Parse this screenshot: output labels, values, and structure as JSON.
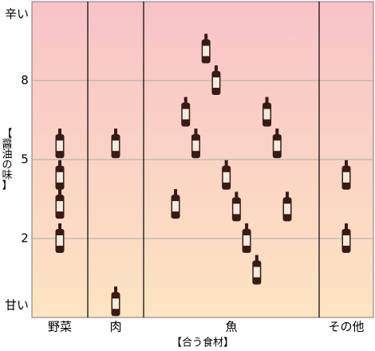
{
  "chart_data": {
    "type": "scatter",
    "y_label": "【醤油の味】",
    "x_label": "【合う食材】",
    "y_top_label": "辛い",
    "y_bottom_label": "甘い",
    "categories": [
      "野菜",
      "肉",
      "魚",
      "その他"
    ],
    "series": [
      {
        "name": "野菜",
        "values": [
          5.6,
          4.4,
          3.3,
          2.0
        ]
      },
      {
        "name": "肉",
        "values": [
          5.6,
          -0.4
        ]
      },
      {
        "name": "魚",
        "values": [
          3.3,
          6.8,
          5.6,
          9.2,
          8.0,
          4.4,
          3.2,
          2.0,
          0.8,
          6.8,
          5.6,
          3.2
        ]
      },
      {
        "name": "その他",
        "values": [
          4.4,
          2.0
        ]
      }
    ],
    "ylim": [
      -1,
      11
    ],
    "yticks": [
      2,
      5,
      8
    ],
    "grid": true,
    "bottle_color": "#3a1a14"
  }
}
